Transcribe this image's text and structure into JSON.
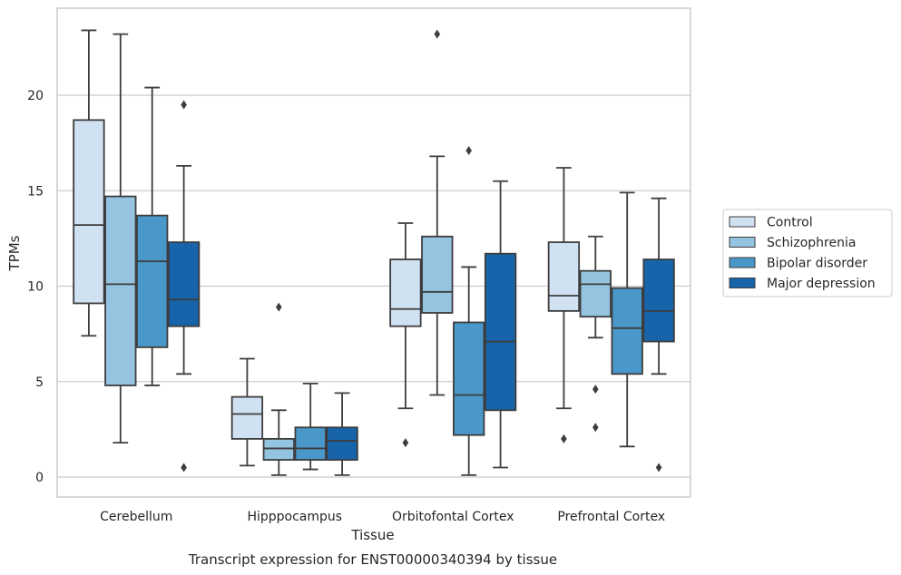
{
  "chart_data": {
    "type": "boxplot",
    "title": "",
    "caption": "Transcript expression for ENST00000340394 by tissue",
    "xlabel": "Tissue",
    "ylabel": "TPMs",
    "ylim": [
      -1,
      25
    ],
    "yticks": [
      0,
      5,
      10,
      15,
      20
    ],
    "grid": "horizontal",
    "legend_position": "right",
    "categories": [
      "Cerebellum",
      "Hipppocampus",
      "Orbitofontal Cortex",
      "Prefrontal Cortex"
    ],
    "series": [
      {
        "name": "Control",
        "color": "#d0e1f2",
        "boxes": [
          {
            "whisker_low": 7.4,
            "q1": 9.1,
            "median": 13.2,
            "q3": 18.7,
            "whisker_high": 23.4,
            "outliers": []
          },
          {
            "whisker_low": 0.6,
            "q1": 2.0,
            "median": 3.3,
            "q3": 4.2,
            "whisker_high": 6.2,
            "outliers": []
          },
          {
            "whisker_low": 3.6,
            "q1": 7.9,
            "median": 8.8,
            "q3": 11.4,
            "whisker_high": 13.3,
            "outliers": [
              1.8
            ]
          },
          {
            "whisker_low": 3.6,
            "q1": 8.7,
            "median": 9.5,
            "q3": 12.3,
            "whisker_high": 16.2,
            "outliers": [
              2.0
            ]
          }
        ]
      },
      {
        "name": "Schizophrenia",
        "color": "#94c4df",
        "boxes": [
          {
            "whisker_low": 1.8,
            "q1": 4.8,
            "median": 10.1,
            "q3": 14.7,
            "whisker_high": 23.2,
            "outliers": []
          },
          {
            "whisker_low": 0.1,
            "q1": 0.9,
            "median": 1.5,
            "q3": 2.0,
            "whisker_high": 3.5,
            "outliers": [
              8.9
            ]
          },
          {
            "whisker_low": 4.3,
            "q1": 8.6,
            "median": 9.7,
            "q3": 12.6,
            "whisker_high": 16.8,
            "outliers": [
              23.2
            ]
          },
          {
            "whisker_low": 7.3,
            "q1": 8.4,
            "median": 10.1,
            "q3": 10.8,
            "whisker_high": 12.6,
            "outliers": [
              4.6,
              2.6
            ]
          }
        ]
      },
      {
        "name": "Bipolar disorder",
        "color": "#4a98c9",
        "boxes": [
          {
            "whisker_low": 4.8,
            "q1": 6.8,
            "median": 11.3,
            "q3": 13.7,
            "whisker_high": 20.4,
            "outliers": []
          },
          {
            "whisker_low": 0.4,
            "q1": 0.9,
            "median": 1.5,
            "q3": 2.6,
            "whisker_high": 4.9,
            "outliers": []
          },
          {
            "whisker_low": 0.1,
            "q1": 2.2,
            "median": 4.3,
            "q3": 8.1,
            "whisker_high": 11.0,
            "outliers": [
              17.1
            ]
          },
          {
            "whisker_low": 1.6,
            "q1": 5.4,
            "median": 7.8,
            "q3": 9.9,
            "whisker_high": 14.9,
            "outliers": []
          }
        ]
      },
      {
        "name": "Major depression",
        "color": "#1764ab",
        "boxes": [
          {
            "whisker_low": 5.4,
            "q1": 7.9,
            "median": 9.3,
            "q3": 12.3,
            "whisker_high": 16.3,
            "outliers": [
              19.5,
              0.5
            ]
          },
          {
            "whisker_low": 0.1,
            "q1": 0.9,
            "median": 1.9,
            "q3": 2.6,
            "whisker_high": 4.4,
            "outliers": []
          },
          {
            "whisker_low": 0.5,
            "q1": 3.5,
            "median": 7.1,
            "q3": 11.7,
            "whisker_high": 15.5,
            "outliers": []
          },
          {
            "whisker_low": 5.4,
            "q1": 7.1,
            "median": 8.7,
            "q3": 11.4,
            "whisker_high": 14.6,
            "outliers": [
              0.5
            ]
          }
        ]
      }
    ]
  }
}
